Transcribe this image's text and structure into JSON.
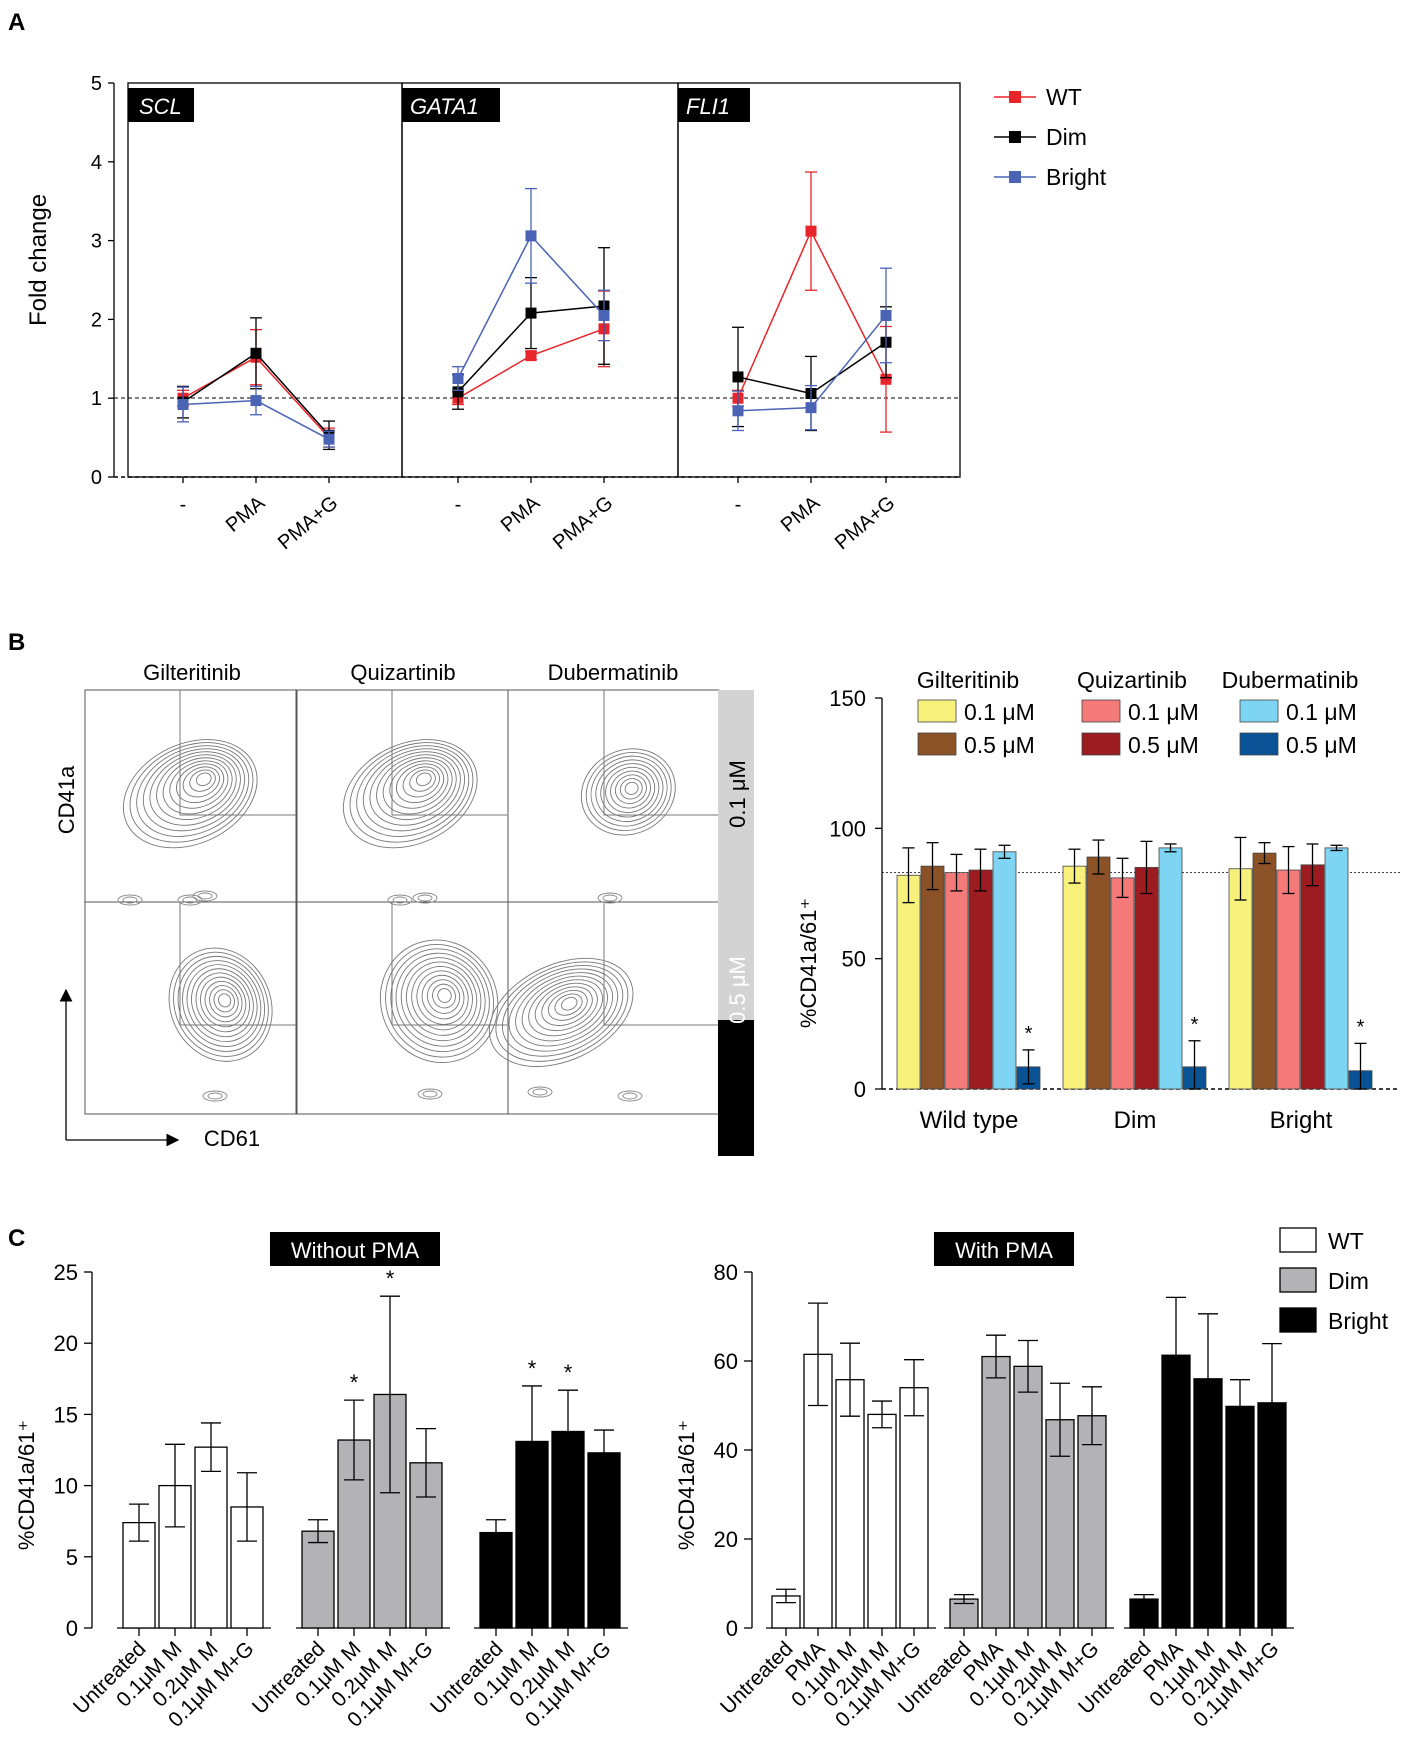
{
  "panels": {
    "a": {
      "letter": "A",
      "ylabel": "Fold change",
      "yticks": [
        "0",
        "1",
        "2",
        "3",
        "4",
        "5"
      ],
      "xcategories": [
        "-",
        "PMA",
        "PMA+G"
      ],
      "legend": [
        {
          "name": "WT",
          "color": "#e8252a"
        },
        {
          "name": "Dim",
          "color": "#000000"
        },
        {
          "name": "Bright",
          "color": "#4a63b5"
        }
      ]
    },
    "b": {
      "letter": "B",
      "flow": {
        "columns": [
          "Gilteritinib",
          "Quizartinib",
          "Dubermatinib"
        ],
        "rows": [
          "0.1 μM",
          "0.5 μM"
        ],
        "y_axis_label": "CD41a",
        "x_axis_label": "CD61"
      },
      "bar_ylabel": "%CD41a/61⁺",
      "bar_yticks": [
        "0",
        "50",
        "100",
        "150"
      ],
      "groups": [
        "Wild type",
        "Dim",
        "Bright"
      ],
      "legend": [
        {
          "drug": "Gilteritinib",
          "items": [
            {
              "label": "0.1 μM",
              "color": "#f7f07a"
            },
            {
              "label": "0.5 μM",
              "color": "#8b5227"
            }
          ]
        },
        {
          "drug": "Quizartinib",
          "items": [
            {
              "label": "0.1 μM",
              "color": "#f47a7a"
            },
            {
              "label": "0.5 μM",
              "color": "#9c1c21"
            }
          ]
        },
        {
          "drug": "Dubermatinib",
          "items": [
            {
              "label": "0.1 μM",
              "color": "#7dd4f3"
            },
            {
              "label": "0.5 μM",
              "color": "#0a5296"
            }
          ]
        }
      ],
      "star": "*"
    },
    "c": {
      "letter": "C",
      "left_title": "Without PMA",
      "right_title": "With PMA",
      "ylabel": "%CD41a/61⁺",
      "left_yticks": [
        "0",
        "5",
        "10",
        "15",
        "20",
        "25"
      ],
      "right_yticks": [
        "0",
        "20",
        "40",
        "60",
        "80"
      ],
      "left_xlabels": [
        "Untreated",
        "0.1μM M",
        "0.2μM M",
        "0.1μM M+G"
      ],
      "right_xlabels": [
        "Untreated",
        "PMA",
        "0.1μM M",
        "0.2μM M",
        "0.1μM M+G"
      ],
      "legend": [
        {
          "name": "WT",
          "color": "#ffffff"
        },
        {
          "name": "Dim",
          "color": "#b3b3b6"
        },
        {
          "name": "Bright",
          "color": "#000000"
        }
      ],
      "star": "*"
    }
  },
  "chart_data": [
    {
      "type": "line",
      "panel": "A",
      "title": "",
      "xlabel": "",
      "ylabel": "Fold change",
      "ylim": [
        0,
        5
      ],
      "reference_line": 1,
      "subplots": [
        {
          "gene": "SCL",
          "x": [
            "-",
            "PMA",
            "PMA+G"
          ],
          "series": [
            {
              "name": "WT",
              "values": [
                1.0,
                1.52,
                0.5
              ],
              "err": [
                0.1,
                0.35,
                0.12
              ]
            },
            {
              "name": "Dim",
              "values": [
                0.95,
                1.57,
                0.53
              ],
              "err": [
                0.2,
                0.45,
                0.18
              ]
            },
            {
              "name": "Bright",
              "values": [
                0.92,
                0.97,
                0.48
              ],
              "err": [
                0.22,
                0.18,
                0.1
              ]
            }
          ]
        },
        {
          "gene": "GATA1",
          "x": [
            "-",
            "PMA",
            "PMA+G"
          ],
          "series": [
            {
              "name": "WT",
              "values": [
                1.0,
                1.54,
                1.88
              ],
              "err": [
                0.08,
                0.05,
                0.48
              ]
            },
            {
              "name": "Dim",
              "values": [
                1.08,
                2.08,
                2.17
              ],
              "err": [
                0.22,
                0.45,
                0.74
              ]
            },
            {
              "name": "Bright",
              "values": [
                1.25,
                3.06,
                2.05
              ],
              "err": [
                0.15,
                0.6,
                0.32
              ]
            }
          ]
        },
        {
          "gene": "FLI1",
          "x": [
            "-",
            "PMA",
            "PMA+G"
          ],
          "series": [
            {
              "name": "WT",
              "values": [
                1.0,
                3.12,
                1.24
              ],
              "err": [
                0.1,
                0.75,
                0.67
              ]
            },
            {
              "name": "Dim",
              "values": [
                1.27,
                1.06,
                1.71
              ],
              "err": [
                0.63,
                0.47,
                0.45
              ]
            },
            {
              "name": "Bright",
              "values": [
                0.84,
                0.88,
                2.05
              ],
              "err": [
                0.25,
                0.28,
                0.6
              ]
            }
          ]
        }
      ]
    },
    {
      "type": "bar",
      "panel": "B",
      "title": "",
      "xlabel": "",
      "ylabel": "%CD41a/61⁺",
      "ylim": [
        0,
        150
      ],
      "reference_line": 83,
      "categories": [
        "Wild type",
        "Dim",
        "Bright"
      ],
      "series": [
        {
          "name": "Gilteritinib 0.1 μM",
          "values": [
            82,
            85.5,
            84.5
          ],
          "err": [
            10.5,
            6.5,
            12
          ]
        },
        {
          "name": "Gilteritinib 0.5 μM",
          "values": [
            85.5,
            89,
            90.5
          ],
          "err": [
            9,
            6.5,
            4
          ]
        },
        {
          "name": "Quizartinib 0.1 μM",
          "values": [
            83,
            81,
            84
          ],
          "err": [
            7,
            7.5,
            9
          ]
        },
        {
          "name": "Quizartinib 0.5 μM",
          "values": [
            84,
            85,
            86
          ],
          "err": [
            8,
            10,
            8
          ]
        },
        {
          "name": "Dubermatinib 0.1 μM",
          "values": [
            91,
            92.5,
            92.5
          ],
          "err": [
            2.5,
            1.5,
            1
          ]
        },
        {
          "name": "Dubermatinib 0.5 μM",
          "values": [
            8.5,
            8.5,
            7
          ],
          "err": [
            6.5,
            10,
            10.5
          ]
        }
      ],
      "significant": [
        "Wild type / Dubermatinib 0.5 μM",
        "Dim / Dubermatinib 0.5 μM",
        "Bright / Dubermatinib 0.5 μM"
      ]
    },
    {
      "type": "bar",
      "panel": "C",
      "title": "Without PMA",
      "xlabel": "",
      "ylabel": "%CD41a/61⁺",
      "ylim": [
        0,
        25
      ],
      "categories": [
        "Untreated",
        "0.1μM M",
        "0.2μM M",
        "0.1μM M+G"
      ],
      "series": [
        {
          "name": "WT",
          "values": [
            7.4,
            10.0,
            12.7,
            8.5
          ],
          "err": [
            1.3,
            2.9,
            1.7,
            2.4
          ],
          "significant": [
            false,
            false,
            false,
            false
          ]
        },
        {
          "name": "Dim",
          "values": [
            6.8,
            13.2,
            16.4,
            11.6
          ],
          "err": [
            0.8,
            2.8,
            6.9,
            2.4
          ],
          "significant": [
            false,
            true,
            true,
            false
          ]
        },
        {
          "name": "Bright",
          "values": [
            6.7,
            13.1,
            13.8,
            12.3
          ],
          "err": [
            0.9,
            3.9,
            2.9,
            1.6
          ],
          "significant": [
            false,
            true,
            true,
            false
          ]
        }
      ]
    },
    {
      "type": "bar",
      "panel": "C",
      "title": "With PMA",
      "xlabel": "",
      "ylabel": "%CD41a/61⁺",
      "ylim": [
        0,
        80
      ],
      "categories": [
        "Untreated",
        "PMA",
        "0.1μM M",
        "0.2μM M",
        "0.1μM M+G"
      ],
      "series": [
        {
          "name": "WT",
          "values": [
            7.2,
            61.5,
            55.8,
            48.0,
            54.0
          ],
          "err": [
            1.5,
            11.5,
            8.2,
            3.0,
            6.3
          ]
        },
        {
          "name": "Dim",
          "values": [
            6.5,
            61.0,
            58.8,
            46.8,
            47.7
          ],
          "err": [
            1.0,
            4.8,
            5.8,
            8.2,
            6.5
          ]
        },
        {
          "name": "Bright",
          "values": [
            6.5,
            61.3,
            56.0,
            49.8,
            50.6
          ],
          "err": [
            1.0,
            13.0,
            14.6,
            6.0,
            13.3
          ]
        }
      ]
    }
  ]
}
